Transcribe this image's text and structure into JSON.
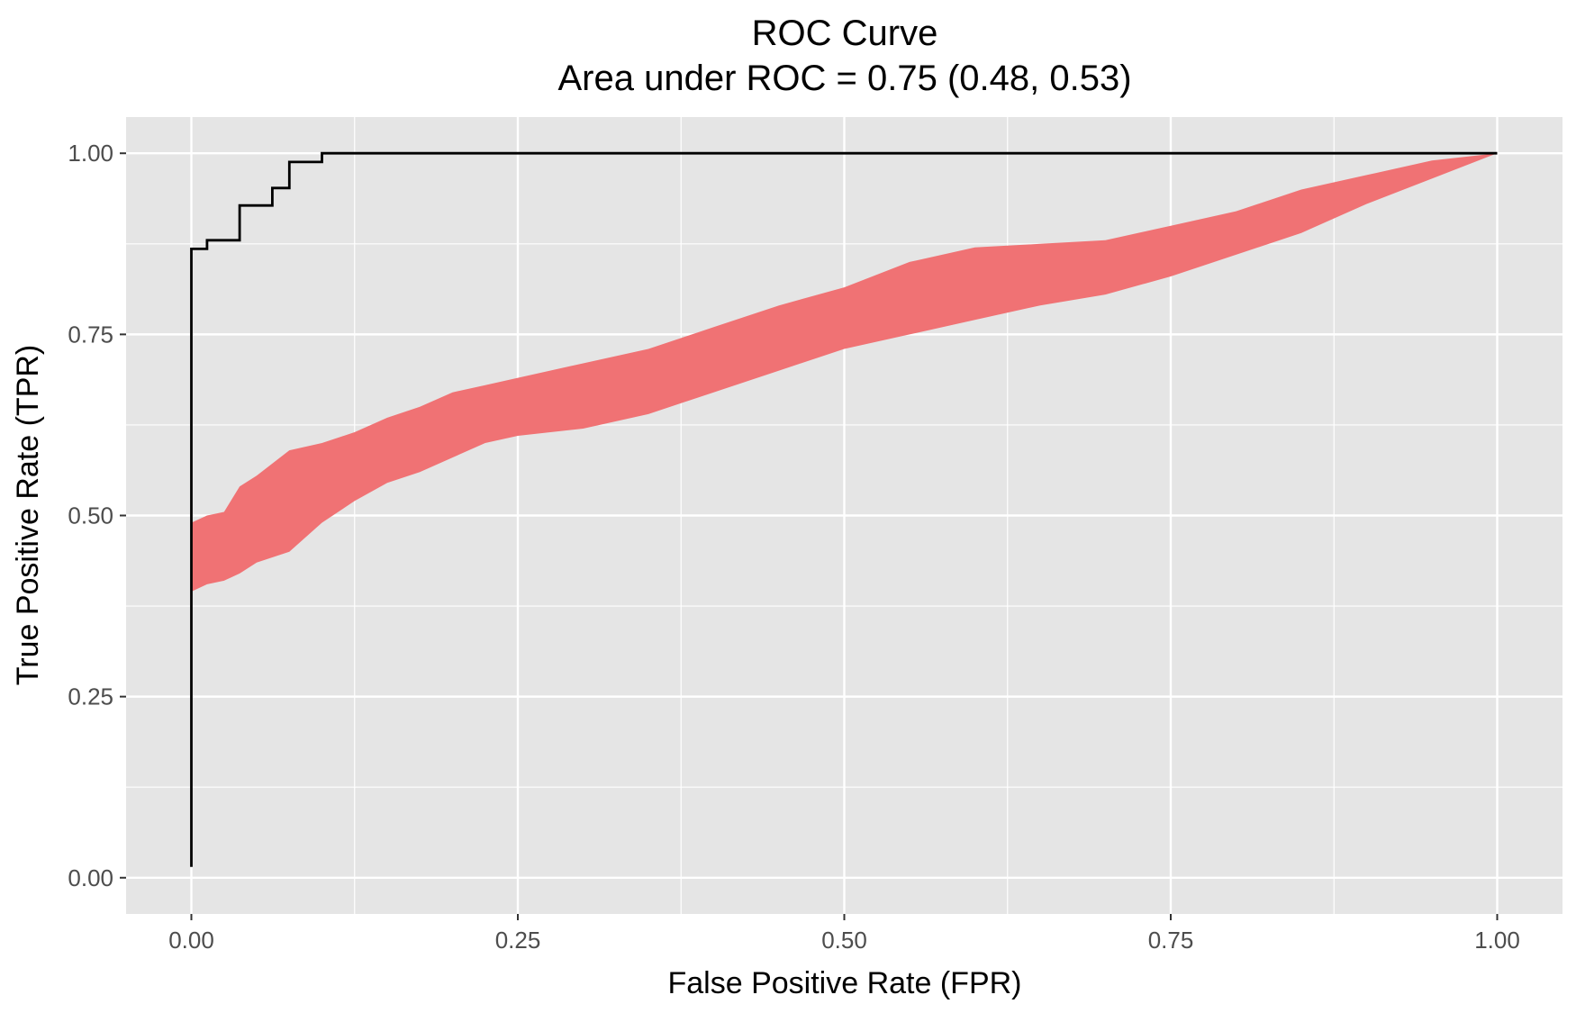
{
  "chart_data": {
    "type": "line",
    "title": "ROC Curve",
    "subtitle": "Area under ROC = 0.75 (0.48, 0.53)",
    "xlabel": "False Positive Rate (FPR)",
    "ylabel": "True Positive Rate (TPR)",
    "xlim": [
      -0.05,
      1.05
    ],
    "ylim": [
      -0.05,
      1.05
    ],
    "x_ticks": [
      0.0,
      0.25,
      0.5,
      0.75,
      1.0
    ],
    "x_tick_labels": [
      "0.00",
      "0.25",
      "0.50",
      "0.75",
      "1.00"
    ],
    "y_ticks": [
      0.0,
      0.25,
      0.5,
      0.75,
      1.0
    ],
    "y_tick_labels": [
      "0.00",
      "0.25",
      "0.50",
      "0.75",
      "1.00"
    ],
    "grid": true,
    "panel_background": "#e5e5e5",
    "grid_color": "#ffffff",
    "series": [
      {
        "kind": "step-line",
        "color": "#000000",
        "x": [
          0.0,
          0.0,
          0.012,
          0.012,
          0.037,
          0.037,
          0.062,
          0.062,
          0.075,
          0.075,
          0.1,
          0.1,
          1.0
        ],
        "y": [
          0.015,
          0.868,
          0.868,
          0.88,
          0.88,
          0.928,
          0.928,
          0.952,
          0.952,
          0.988,
          0.988,
          1.0,
          1.0
        ]
      },
      {
        "kind": "band",
        "color": "#f07274",
        "x": [
          0.0,
          0.012,
          0.025,
          0.037,
          0.05,
          0.075,
          0.1,
          0.125,
          0.15,
          0.175,
          0.2,
          0.225,
          0.25,
          0.3,
          0.35,
          0.4,
          0.45,
          0.5,
          0.55,
          0.6,
          0.65,
          0.7,
          0.75,
          0.8,
          0.85,
          0.9,
          0.95,
          1.0
        ],
        "lower": [
          0.395,
          0.405,
          0.41,
          0.42,
          0.435,
          0.45,
          0.49,
          0.52,
          0.545,
          0.56,
          0.58,
          0.6,
          0.61,
          0.62,
          0.64,
          0.67,
          0.7,
          0.73,
          0.75,
          0.77,
          0.79,
          0.805,
          0.83,
          0.86,
          0.89,
          0.93,
          0.965,
          1.0
        ],
        "upper": [
          0.49,
          0.5,
          0.505,
          0.54,
          0.555,
          0.59,
          0.6,
          0.615,
          0.635,
          0.65,
          0.67,
          0.68,
          0.69,
          0.71,
          0.73,
          0.76,
          0.79,
          0.815,
          0.85,
          0.87,
          0.875,
          0.88,
          0.9,
          0.92,
          0.95,
          0.97,
          0.99,
          1.0
        ]
      }
    ]
  }
}
